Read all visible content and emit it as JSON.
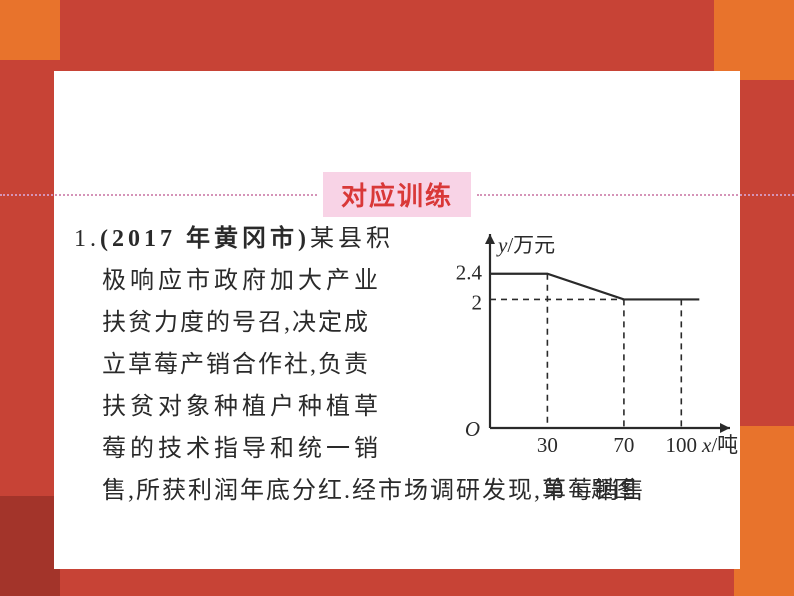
{
  "section_title": "对应训练",
  "problem": {
    "number": "1.",
    "source_bold": "(2017 年黄冈市)",
    "line1_rest": "某县积",
    "line2": "极响应市政府加大产业",
    "line3": "扶贫力度的号召,决定成",
    "line4": "立草莓产销合作社,负责",
    "line5": "扶贫对象种植户种植草",
    "line6": "莓的技术指导和统一销",
    "line7": "售,所获利润年底分红.经市场调研发现,草莓销售"
  },
  "chart": {
    "caption": "第 1 题图",
    "ylabel": "y/万元",
    "xlabel": "x/吨",
    "origin": "O",
    "ytick_labels": [
      "2",
      "2.4"
    ],
    "xtick_labels": [
      "30",
      "70",
      "100"
    ],
    "x_values": [
      0,
      30,
      70,
      100
    ],
    "y_values": [
      2.4,
      2.4,
      2.0,
      2.0
    ],
    "ylim": [
      0,
      2.8
    ],
    "xlim": [
      0,
      115
    ],
    "line_color": "#2a2a2a",
    "dash_color": "#2a2a2a",
    "background": "#ffffff",
    "axis_color": "#2a2a2a",
    "line_width": 2.2,
    "dash_width": 1.6,
    "font_size": 21
  },
  "colors": {
    "card_bg": "#ffffff",
    "page_bg": "#c74336",
    "section_bg": "#f8d3e6",
    "section_text": "#d93838",
    "dotted": "#d594b8",
    "text": "#2a2a2a"
  }
}
